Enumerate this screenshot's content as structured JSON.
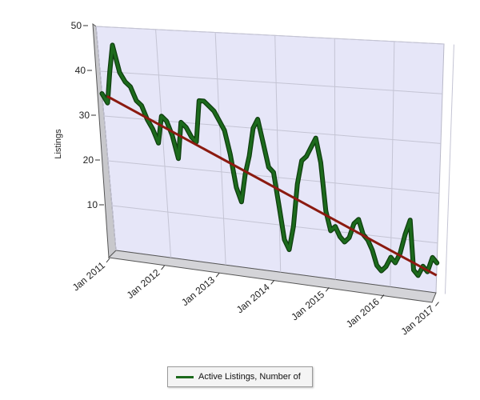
{
  "chart_data": {
    "type": "line",
    "title": "",
    "xlabel": "",
    "ylabel": "Listings",
    "ylim": [
      0,
      50
    ],
    "y_ticks": [
      10,
      20,
      30,
      40,
      50
    ],
    "x_ticks": [
      "Jan 2011",
      "Jan 2012",
      "Jan 2013",
      "Jan 2014",
      "Jan 2015",
      "Jan 2016",
      "Jan 2017"
    ],
    "grid": true,
    "style": "3d",
    "legend_position": "bottom",
    "x_start": "Jan 2011",
    "series": [
      {
        "name": "Active Listings, Number of",
        "color": "#1c6a1c",
        "values": [
          35,
          33,
          40,
          46,
          40,
          38,
          37,
          34,
          33,
          30,
          28,
          25,
          31,
          30,
          27,
          22,
          30,
          29,
          27,
          26,
          35,
          35,
          34,
          33,
          31,
          29,
          24,
          17,
          14,
          20,
          24,
          30,
          32,
          27,
          22,
          21,
          14,
          7,
          5,
          10,
          19,
          24,
          25,
          27,
          29,
          24,
          14,
          10,
          11,
          9,
          8,
          9,
          12,
          13,
          10,
          9,
          7,
          4,
          3,
          4,
          6,
          5,
          7,
          11,
          14,
          4,
          3,
          5,
          4,
          7,
          6
        ]
      }
    ],
    "trendline": {
      "color": "#8b1a10",
      "values": [
        34.5,
        3.5
      ]
    }
  }
}
